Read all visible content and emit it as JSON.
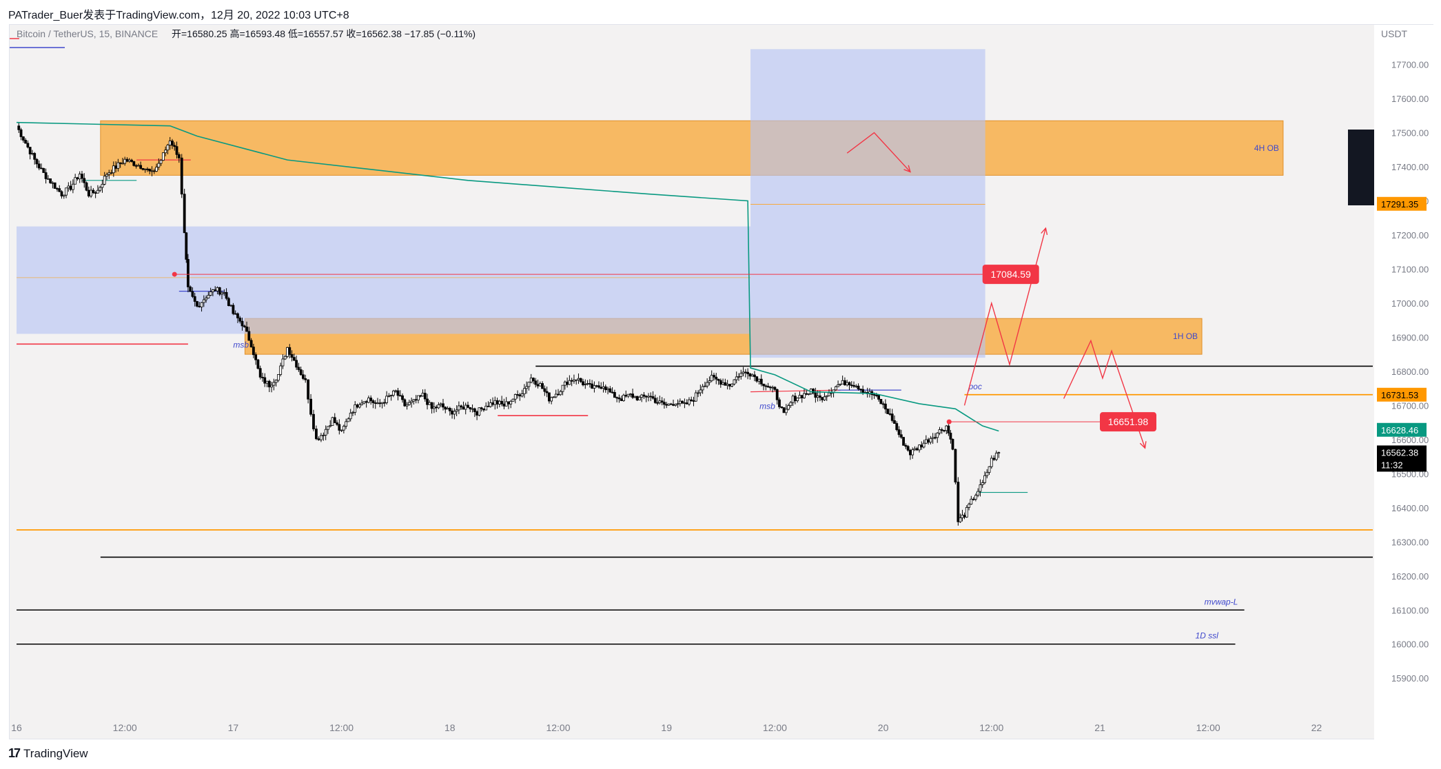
{
  "header": {
    "publisher": "PATrader_Buer发表于TradingView.com，12月 20, 2022 10:03 UTC+8"
  },
  "footer": {
    "brand": "TradingView",
    "logo_glyph": "17"
  },
  "symbol_bar": {
    "symbol": "Bitcoin / TetherUS, 15, BINANCE",
    "open_label": "开",
    "open": "16580.25",
    "high_label": "高",
    "high": "16593.48",
    "low_label": "低",
    "low": "16557.57",
    "close_label": "收",
    "close": "16562.38",
    "change": "−17.85 (−0.11%)"
  },
  "colors": {
    "up": "#ffffff",
    "down": "#000000",
    "zone_orange": "#f7a93b",
    "zone_blue": "#b5c4f3",
    "red": "#f23645",
    "green": "#089981",
    "orange": "#ff9800"
  },
  "chart_data": {
    "type": "candlestick",
    "currency": "USDT",
    "x_range": [
      "16",
      "22"
    ],
    "ylim": [
      15850,
      17780
    ],
    "grid": false,
    "y_ticks": [
      "17700.00",
      "17600.00",
      "17500.00",
      "17400.00",
      "17300.00",
      "17200.00",
      "17100.00",
      "17000.00",
      "16900.00",
      "16800.00",
      "16700.00",
      "16600.00",
      "16500.00",
      "16400.00",
      "16300.00",
      "16200.00",
      "16100.00",
      "16000.00",
      "15900.00"
    ],
    "x_ticks": [
      {
        "label": "16",
        "t": 0
      },
      {
        "label": "12:00",
        "t": 12
      },
      {
        "label": "17",
        "t": 24
      },
      {
        "label": "12:00",
        "t": 36
      },
      {
        "label": "18",
        "t": 48
      },
      {
        "label": "12:00",
        "t": 60
      },
      {
        "label": "19",
        "t": 72
      },
      {
        "label": "12:00",
        "t": 84
      },
      {
        "label": "20",
        "t": 96
      },
      {
        "label": "12:00",
        "t": 108
      },
      {
        "label": "21",
        "t": 120
      },
      {
        "label": "12:00",
        "t": 132
      },
      {
        "label": "22",
        "t": 144
      }
    ],
    "price_tags": [
      {
        "value": "17291.35",
        "price": 17291.35,
        "color": "#ff9800",
        "text_color": "#000000"
      },
      {
        "value": "16731.53",
        "price": 16731.53,
        "color": "#ff9800",
        "text_color": "#000000"
      },
      {
        "value": "16628.46",
        "price": 16628.46,
        "color": "#089981",
        "text_color": "#ffffff"
      },
      {
        "value": "16562.38",
        "price": 16562.38,
        "color": "#000000",
        "text_color": "#ffffff",
        "countdown": "11:32"
      }
    ],
    "callouts": [
      {
        "value": "17084.59",
        "price": 17084.59,
        "t": 107
      },
      {
        "value": "16651.98",
        "price": 16651.98,
        "t": 120
      }
    ],
    "zones": [
      {
        "label": "4H OB",
        "t0": 9.3,
        "t1": 140.3,
        "p0": 17375,
        "p1": 17535,
        "kind": "orange"
      },
      {
        "label": "1H OB",
        "t0": 25.3,
        "t1": 131.3,
        "p0": 16850,
        "p1": 16955,
        "kind": "orange"
      },
      {
        "label": "",
        "t0": 0,
        "t1": 81.3,
        "p0": 16910,
        "p1": 17225,
        "kind": "blue"
      },
      {
        "label": "",
        "t0": 81.3,
        "t1": 107.3,
        "p0": 16840,
        "p1": 17745,
        "kind": "blue"
      }
    ],
    "levels": [
      {
        "label": "mvwap-L",
        "price": 16100,
        "t0": 0,
        "t1": 136,
        "color": "#000000"
      },
      {
        "label": "1D ssl",
        "price": 16000,
        "t0": 0,
        "t1": 135,
        "color": "#000000"
      },
      {
        "label": "",
        "price": 16255,
        "t0": 9.3,
        "t1": 151,
        "color": "#000000"
      },
      {
        "label": "",
        "price": 16335,
        "t0": 0,
        "t1": 151,
        "color": "#ff9800"
      },
      {
        "label": "",
        "price": 16815,
        "t0": 57.5,
        "t1": 151,
        "color": "#000000"
      },
      {
        "label": "poc",
        "price": 16731.53,
        "t0": 105,
        "t1": 151,
        "color": "#ff9800"
      }
    ],
    "annotations": [
      {
        "label": "msb",
        "t": 24,
        "price": 16870
      },
      {
        "label": "msb",
        "t": 82.3,
        "price": 16690
      }
    ],
    "candles_anchor": [
      [
        0,
        17520
      ],
      [
        1,
        17470
      ],
      [
        2,
        17420
      ],
      [
        3,
        17380
      ],
      [
        4,
        17350
      ],
      [
        5,
        17320
      ],
      [
        6,
        17340
      ],
      [
        7,
        17380
      ],
      [
        8,
        17320
      ],
      [
        9,
        17330
      ],
      [
        10,
        17380
      ],
      [
        11,
        17400
      ],
      [
        12,
        17420
      ],
      [
        13,
        17410
      ],
      [
        14,
        17400
      ],
      [
        15,
        17380
      ],
      [
        16,
        17420
      ],
      [
        17,
        17480
      ],
      [
        18,
        17430
      ],
      [
        18.6,
        17200
      ],
      [
        19,
        17040
      ],
      [
        20,
        16990
      ],
      [
        21,
        17020
      ],
      [
        22,
        17040
      ],
      [
        23,
        17030
      ],
      [
        24,
        16970
      ],
      [
        25,
        16940
      ],
      [
        26,
        16880
      ],
      [
        27,
        16780
      ],
      [
        28,
        16760
      ],
      [
        29,
        16790
      ],
      [
        30,
        16870
      ],
      [
        31,
        16820
      ],
      [
        32,
        16770
      ],
      [
        32.6,
        16680
      ],
      [
        33.2,
        16600
      ],
      [
        34,
        16620
      ],
      [
        35,
        16660
      ],
      [
        36,
        16620
      ],
      [
        37,
        16680
      ],
      [
        38,
        16710
      ],
      [
        39,
        16720
      ],
      [
        40,
        16700
      ],
      [
        41,
        16720
      ],
      [
        42,
        16740
      ],
      [
        43,
        16700
      ],
      [
        44,
        16710
      ],
      [
        45,
        16730
      ],
      [
        46,
        16690
      ],
      [
        47,
        16700
      ],
      [
        48,
        16680
      ],
      [
        49,
        16690
      ],
      [
        50,
        16700
      ],
      [
        51,
        16680
      ],
      [
        52,
        16700
      ],
      [
        53,
        16710
      ],
      [
        54,
        16700
      ],
      [
        55,
        16720
      ],
      [
        56,
        16740
      ],
      [
        57,
        16780
      ],
      [
        58,
        16760
      ],
      [
        59,
        16720
      ],
      [
        60,
        16740
      ],
      [
        61,
        16770
      ],
      [
        62,
        16780
      ],
      [
        63,
        16760
      ],
      [
        64,
        16750
      ],
      [
        65,
        16760
      ],
      [
        66,
        16730
      ],
      [
        67,
        16720
      ],
      [
        68,
        16730
      ],
      [
        69,
        16720
      ],
      [
        70,
        16730
      ],
      [
        71,
        16710
      ],
      [
        72,
        16700
      ],
      [
        73,
        16710
      ],
      [
        74,
        16700
      ],
      [
        75,
        16720
      ],
      [
        76,
        16760
      ],
      [
        77,
        16780
      ],
      [
        78,
        16770
      ],
      [
        79,
        16760
      ],
      [
        80,
        16790
      ],
      [
        81,
        16800
      ],
      [
        82,
        16780
      ],
      [
        83,
        16760
      ],
      [
        84,
        16740
      ],
      [
        85,
        16670
      ],
      [
        86,
        16720
      ],
      [
        87,
        16730
      ],
      [
        88,
        16740
      ],
      [
        89,
        16720
      ],
      [
        90,
        16740
      ],
      [
        91,
        16760
      ],
      [
        92,
        16770
      ],
      [
        93,
        16760
      ],
      [
        94,
        16740
      ],
      [
        95,
        16730
      ],
      [
        96,
        16700
      ],
      [
        97,
        16660
      ],
      [
        98,
        16600
      ],
      [
        99,
        16560
      ],
      [
        100,
        16580
      ],
      [
        101,
        16600
      ],
      [
        102,
        16620
      ],
      [
        103,
        16640
      ],
      [
        103.7,
        16580
      ],
      [
        104.3,
        16360
      ],
      [
        105,
        16380
      ],
      [
        106,
        16430
      ],
      [
        107,
        16470
      ],
      [
        108,
        16540
      ],
      [
        108.8,
        16562
      ]
    ],
    "trend_lines": {
      "vwap": [
        [
          0,
          17530
        ],
        [
          17,
          17520
        ],
        [
          20,
          17490
        ],
        [
          30,
          17420
        ],
        [
          40,
          17390
        ],
        [
          50,
          17360
        ],
        [
          60,
          17340
        ],
        [
          70,
          17320
        ],
        [
          81,
          17300
        ],
        [
          81.3,
          16810
        ],
        [
          84,
          16790
        ],
        [
          88,
          16740
        ],
        [
          95,
          16735
        ],
        [
          100,
          16705
        ],
        [
          104,
          16690
        ],
        [
          107,
          16640
        ],
        [
          108.8,
          16625
        ]
      ]
    },
    "projections": [
      {
        "color": "#f23645",
        "points": [
          [
            92,
            17440
          ],
          [
            95,
            17500
          ],
          [
            99,
            17385
          ]
        ]
      },
      {
        "color": "#f23645",
        "points": [
          [
            105,
            16700
          ],
          [
            108,
            17000
          ],
          [
            110,
            16820
          ],
          [
            114,
            17220
          ]
        ]
      },
      {
        "color": "#f23645",
        "points": [
          [
            116,
            16720
          ],
          [
            119,
            16890
          ],
          [
            120.3,
            16780
          ],
          [
            121.3,
            16860
          ],
          [
            125,
            16575
          ]
        ]
      }
    ]
  }
}
